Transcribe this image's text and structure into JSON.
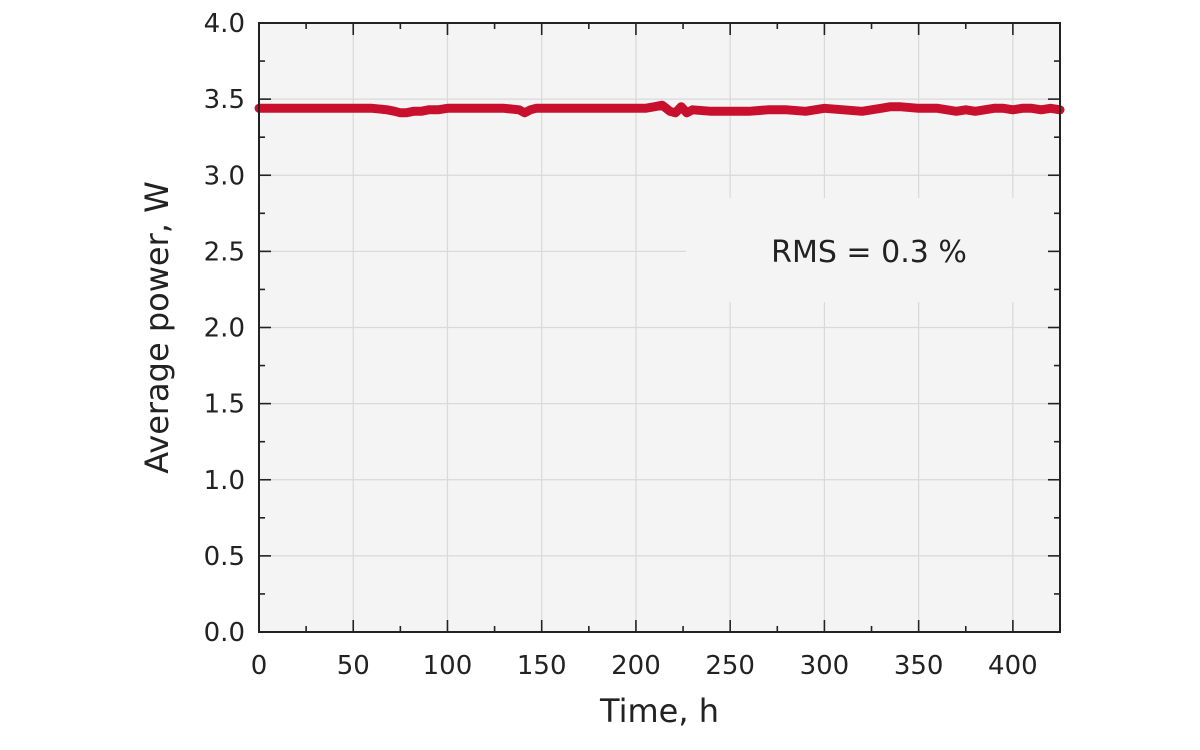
{
  "chart_data": {
    "type": "line",
    "xlabel": "Time, h",
    "ylabel": "Average power, W",
    "xlim": [
      0,
      425
    ],
    "ylim": [
      0.0,
      4.0
    ],
    "x_ticks": [
      0,
      50,
      100,
      150,
      200,
      250,
      300,
      350,
      400
    ],
    "x_tick_labels": [
      "0",
      "50",
      "100",
      "150",
      "200",
      "250",
      "300",
      "350",
      "400"
    ],
    "y_ticks": [
      0.0,
      0.5,
      1.0,
      1.5,
      2.0,
      2.5,
      3.0,
      3.5,
      4.0
    ],
    "y_tick_labels": [
      "0.0",
      "0.5",
      "1.0",
      "1.5",
      "2.0",
      "2.5",
      "3.0",
      "3.5",
      "4.0"
    ],
    "grid": true,
    "annotation": "RMS = 0.3 %",
    "series": [
      {
        "color": "#c8102e",
        "x": [
          0,
          10,
          20,
          30,
          40,
          50,
          60,
          68,
          72,
          75,
          78,
          82,
          86,
          90,
          95,
          100,
          110,
          120,
          130,
          138,
          141,
          144,
          147,
          150,
          160,
          170,
          180,
          190,
          200,
          205,
          210,
          214,
          218,
          221,
          224,
          227,
          230,
          240,
          250,
          260,
          270,
          280,
          290,
          300,
          310,
          320,
          325,
          330,
          335,
          340,
          350,
          360,
          365,
          370,
          375,
          380,
          385,
          390,
          395,
          400,
          405,
          410,
          415,
          420,
          425
        ],
        "y": [
          3.44,
          3.44,
          3.44,
          3.44,
          3.44,
          3.44,
          3.44,
          3.43,
          3.42,
          3.41,
          3.41,
          3.42,
          3.42,
          3.43,
          3.43,
          3.44,
          3.44,
          3.44,
          3.44,
          3.43,
          3.41,
          3.43,
          3.44,
          3.44,
          3.44,
          3.44,
          3.44,
          3.44,
          3.44,
          3.44,
          3.45,
          3.46,
          3.42,
          3.41,
          3.45,
          3.41,
          3.43,
          3.42,
          3.42,
          3.42,
          3.43,
          3.43,
          3.42,
          3.44,
          3.43,
          3.42,
          3.43,
          3.44,
          3.45,
          3.45,
          3.44,
          3.44,
          3.43,
          3.42,
          3.43,
          3.42,
          3.43,
          3.44,
          3.44,
          3.43,
          3.44,
          3.44,
          3.43,
          3.44,
          3.43
        ]
      }
    ]
  }
}
